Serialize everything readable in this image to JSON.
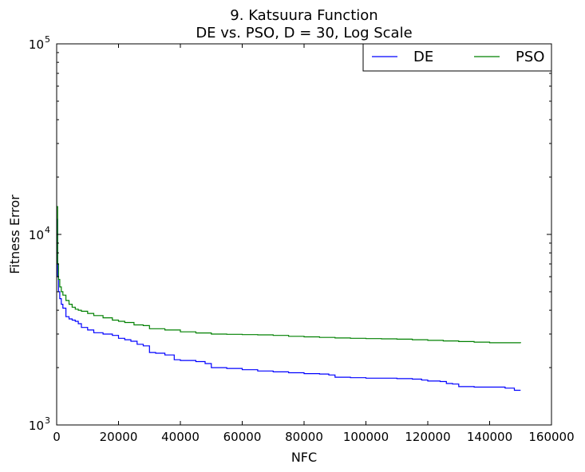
{
  "chart_data": {
    "type": "line",
    "title_line1": "9.   Katsuura Function",
    "title_line2": "DE vs. PSO, D = 30, Log Scale",
    "xlabel": "NFC",
    "ylabel": "Fitness Error",
    "xlim": [
      0,
      160000
    ],
    "ylim": [
      1000,
      100000
    ],
    "yscale": "log",
    "grid": false,
    "legend_position": "top-right",
    "x_ticks": [
      "0",
      "20000",
      "40000",
      "60000",
      "80000",
      "100000",
      "120000",
      "140000",
      "160000"
    ],
    "y_ticks": [
      {
        "value": 1000,
        "base": "10",
        "exp": "3"
      },
      {
        "value": 10000,
        "base": "10",
        "exp": "4"
      },
      {
        "value": 100000,
        "base": "10",
        "exp": "5"
      }
    ],
    "series": [
      {
        "name": "DE",
        "color": "#0000ff",
        "x": [
          0,
          300,
          600,
          1000,
          1500,
          2000,
          3000,
          4000,
          5000,
          6000,
          7000,
          8000,
          10000,
          12000,
          15000,
          18000,
          20000,
          22000,
          24000,
          26000,
          28000,
          30000,
          32000,
          35000,
          38000,
          40000,
          45000,
          48000,
          50000,
          55000,
          60000,
          65000,
          70000,
          75000,
          80000,
          85000,
          88000,
          90000,
          95000,
          100000,
          105000,
          110000,
          115000,
          118000,
          120000,
          124000,
          126000,
          128000,
          130000,
          135000,
          140000,
          145000,
          148000,
          150000
        ],
        "y": [
          12000,
          6000,
          5000,
          4600,
          4300,
          4100,
          3700,
          3600,
          3550,
          3500,
          3400,
          3250,
          3150,
          3050,
          3000,
          2950,
          2850,
          2800,
          2750,
          2650,
          2600,
          2400,
          2380,
          2330,
          2200,
          2180,
          2150,
          2100,
          2000,
          1980,
          1950,
          1920,
          1900,
          1880,
          1860,
          1850,
          1830,
          1780,
          1770,
          1760,
          1760,
          1750,
          1740,
          1720,
          1700,
          1690,
          1650,
          1640,
          1590,
          1580,
          1580,
          1560,
          1520,
          1520
        ]
      },
      {
        "name": "PSO",
        "color": "#008000",
        "x": [
          0,
          300,
          600,
          1000,
          1500,
          2000,
          3000,
          4000,
          5000,
          6000,
          7000,
          8000,
          10000,
          12000,
          15000,
          18000,
          20000,
          22000,
          25000,
          28000,
          30000,
          35000,
          40000,
          45000,
          50000,
          55000,
          60000,
          65000,
          70000,
          75000,
          80000,
          85000,
          90000,
          95000,
          100000,
          105000,
          110000,
          115000,
          120000,
          125000,
          130000,
          135000,
          140000,
          145000,
          150000
        ],
        "y": [
          14000,
          7000,
          5800,
          5300,
          5000,
          4800,
          4500,
          4300,
          4150,
          4050,
          4000,
          3950,
          3850,
          3750,
          3650,
          3550,
          3500,
          3450,
          3350,
          3320,
          3200,
          3150,
          3080,
          3040,
          3000,
          2990,
          2980,
          2970,
          2950,
          2920,
          2900,
          2880,
          2860,
          2850,
          2840,
          2830,
          2820,
          2800,
          2780,
          2760,
          2740,
          2720,
          2700,
          2700,
          2690
        ]
      }
    ]
  }
}
